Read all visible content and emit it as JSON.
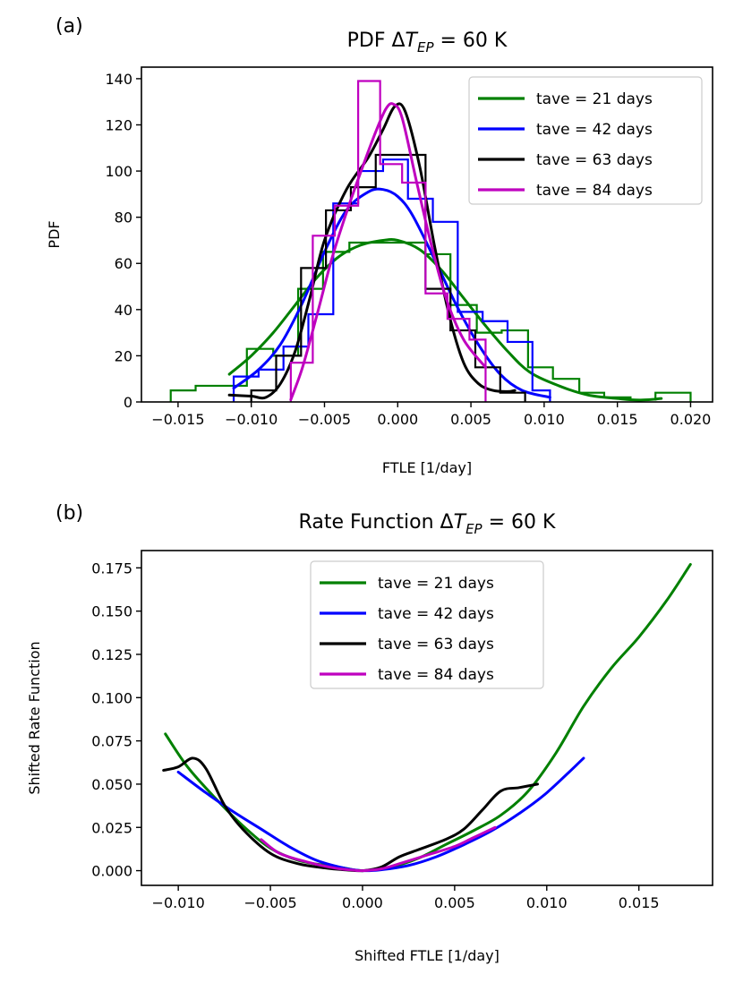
{
  "chart_data": [
    {
      "type": "line",
      "panel_label": "(a)",
      "title": "PDF ΔT_EP = 60 K",
      "title_parts": {
        "prefix": "PDF Δ",
        "var": "T",
        "sub": "EP",
        "suffix": " = 60 K"
      },
      "xlabel": "FTLE [1/day]",
      "ylabel": "PDF",
      "xlim": [
        -0.0175,
        0.0215
      ],
      "ylim": [
        0,
        145
      ],
      "xticks": [
        -0.015,
        -0.01,
        -0.005,
        0.0,
        0.005,
        0.01,
        0.015,
        0.02
      ],
      "xtick_labels": [
        "−0.015",
        "−0.010",
        "−0.005",
        "0.000",
        "0.005",
        "0.010",
        "0.015",
        "0.020"
      ],
      "yticks": [
        0,
        20,
        40,
        60,
        80,
        100,
        120,
        140
      ],
      "ytick_labels": [
        "0",
        "20",
        "40",
        "60",
        "80",
        "100",
        "120",
        "140"
      ],
      "legend_position": "top-right",
      "series": [
        {
          "name": "tave = 21 days",
          "color": "#008000",
          "histogram": {
            "edges": [
              -0.0155,
              -0.0138,
              -0.012,
              -0.0103,
              -0.0085,
              -0.0068,
              -0.0051,
              -0.0033,
              -0.0016,
              0.0002,
              0.0019,
              0.0036,
              0.0054,
              0.0071,
              0.0089,
              0.0106,
              0.0124,
              0.0141,
              0.0159,
              0.0176,
              0.02
            ],
            "counts": [
              5,
              7,
              7,
              23,
              20,
              49,
              65,
              69,
              69,
              69,
              64,
              42,
              30,
              31,
              15,
              10,
              4,
              2,
              1,
              4
            ]
          },
          "curve": {
            "x": [
              -0.0115,
              -0.01,
              -0.0085,
              -0.007,
              -0.0055,
              -0.004,
              -0.0025,
              -0.001,
              0.0,
              0.0015,
              0.003,
              0.0045,
              0.006,
              0.0075,
              0.009,
              0.011,
              0.013,
              0.015,
              0.0165,
              0.018
            ],
            "y": [
              12,
              20,
              30,
              42,
              54,
              63,
              68,
              70,
              70,
              66,
              57,
              45,
              33,
              22,
              13,
              7,
              3,
              1.5,
              0.8,
              1.5
            ]
          }
        },
        {
          "name": "tave = 42 days",
          "color": "#0000ff",
          "histogram": {
            "edges": [
              -0.0112,
              -0.0095,
              -0.0078,
              -0.0061,
              -0.0044,
              -0.0027,
              -0.001,
              0.0007,
              0.0024,
              0.0041,
              0.0058,
              0.0075,
              0.0092,
              0.0104
            ],
            "counts": [
              11,
              14,
              24,
              38,
              86,
              100,
              105,
              88,
              78,
              39,
              35,
              26,
              5
            ]
          },
          "curve": {
            "x": [
              -0.0112,
              -0.0095,
              -0.008,
              -0.0065,
              -0.005,
              -0.0035,
              -0.002,
              -0.001,
              0.0,
              0.001,
              0.0025,
              0.004,
              0.0055,
              0.007,
              0.0085,
              0.0104
            ],
            "y": [
              6,
              14,
              25,
              43,
              65,
              83,
              91,
              92,
              89,
              81,
              62,
              42,
              25,
              12,
              5,
              2
            ]
          }
        },
        {
          "name": "tave = 63 days",
          "color": "#000000",
          "histogram": {
            "edges": [
              -0.01,
              -0.0083,
              -0.0066,
              -0.0049,
              -0.0032,
              -0.0015,
              0.0002,
              0.0019,
              0.0036,
              0.0053,
              0.007,
              0.0087
            ],
            "counts": [
              5,
              20,
              58,
              83,
              93,
              107,
              107,
              49,
              31,
              15,
              4
            ]
          },
          "curve": {
            "x": [
              -0.0115,
              -0.01,
              -0.009,
              -0.008,
              -0.007,
              -0.006,
              -0.005,
              -0.0035,
              -0.002,
              -0.001,
              -0.0002,
              0.0005,
              0.0015,
              0.0025,
              0.0035,
              0.0045,
              0.0055,
              0.0065,
              0.0075,
              0.008
            ],
            "y": [
              3,
              2.5,
              2,
              8,
              22,
              45,
              70,
              92,
              106,
              118,
              128,
              126,
              102,
              68,
              38,
              17,
              8,
              5,
              4.5,
              5
            ]
          }
        },
        {
          "name": "tave = 84 days",
          "color": "#bf00bf",
          "histogram": {
            "edges": [
              -0.0073,
              -0.0058,
              -0.0043,
              -0.0027,
              -0.0012,
              0.0003,
              0.0019,
              0.0034,
              0.0049,
              0.006
            ],
            "counts": [
              17,
              72,
              85,
              139,
              103,
              95,
              47,
              36,
              27
            ]
          },
          "curve": {
            "x": [
              -0.0073,
              -0.0065,
              -0.0055,
              -0.0045,
              -0.0035,
              -0.0025,
              -0.0015,
              -0.0008,
              -0.0003,
              0.0003,
              0.0013,
              0.0023,
              0.0033,
              0.0045,
              0.006
            ],
            "y": [
              1,
              15,
              38,
              62,
              82,
              100,
              117,
              127,
              129,
              123,
              95,
              68,
              45,
              27,
              15
            ]
          }
        }
      ]
    },
    {
      "type": "line",
      "panel_label": "(b)",
      "title": "Rate Function ΔT_EP = 60 K",
      "title_parts": {
        "prefix": "Rate Function Δ",
        "var": "T",
        "sub": "EP",
        "suffix": " = 60 K"
      },
      "xlabel": "Shifted FTLE [1/day]",
      "ylabel": "Shifted Rate Function",
      "xlim": [
        -0.012,
        0.019
      ],
      "ylim": [
        -0.0085,
        0.185
      ],
      "xticks": [
        -0.01,
        -0.005,
        0.0,
        0.005,
        0.01,
        0.015
      ],
      "xtick_labels": [
        "−0.010",
        "−0.005",
        "0.000",
        "0.005",
        "0.010",
        "0.015"
      ],
      "yticks": [
        0.0,
        0.025,
        0.05,
        0.075,
        0.1,
        0.125,
        0.15,
        0.175
      ],
      "ytick_labels": [
        "0.000",
        "0.025",
        "0.050",
        "0.075",
        "0.100",
        "0.125",
        "0.150",
        "0.175"
      ],
      "legend_position": "upper-center",
      "series": [
        {
          "name": "tave = 21 days",
          "color": "#008000",
          "x": [
            -0.0107,
            -0.0095,
            -0.008,
            -0.0065,
            -0.005,
            -0.0035,
            -0.002,
            -0.001,
            0.0,
            0.0015,
            0.003,
            0.0045,
            0.006,
            0.0075,
            0.009,
            0.0105,
            0.012,
            0.0135,
            0.015,
            0.0165,
            0.0178
          ],
          "y": [
            0.079,
            0.06,
            0.042,
            0.026,
            0.013,
            0.006,
            0.003,
            0.0015,
            0.0,
            0.002,
            0.007,
            0.015,
            0.023,
            0.032,
            0.046,
            0.068,
            0.095,
            0.117,
            0.135,
            0.156,
            0.177
          ]
        },
        {
          "name": "tave = 42 days",
          "color": "#0000ff",
          "x": [
            -0.01,
            -0.0085,
            -0.007,
            -0.0055,
            -0.004,
            -0.0025,
            -0.001,
            0.0,
            0.001,
            0.0025,
            0.004,
            0.0055,
            0.007,
            0.0085,
            0.01,
            0.012
          ],
          "y": [
            0.057,
            0.045,
            0.034,
            0.024,
            0.014,
            0.006,
            0.0015,
            0.0,
            0.0005,
            0.003,
            0.008,
            0.015,
            0.023,
            0.033,
            0.045,
            0.065
          ]
        },
        {
          "name": "tave = 63 days",
          "color": "#000000",
          "x": [
            -0.0108,
            -0.01,
            -0.0092,
            -0.0085,
            -0.0075,
            -0.0065,
            -0.005,
            -0.0035,
            -0.002,
            -0.001,
            0.0,
            0.001,
            0.002,
            0.003,
            0.0045,
            0.0055,
            0.0065,
            0.0075,
            0.0085,
            0.0095
          ],
          "y": [
            0.058,
            0.06,
            0.065,
            0.059,
            0.038,
            0.024,
            0.01,
            0.004,
            0.0015,
            0.0005,
            0.0,
            0.002,
            0.008,
            0.012,
            0.018,
            0.024,
            0.035,
            0.046,
            0.048,
            0.05
          ]
        },
        {
          "name": "tave = 84 days",
          "color": "#bf00bf",
          "x": [
            -0.0055,
            -0.0045,
            -0.003,
            -0.0015,
            -0.0005,
            0.0,
            0.001,
            0.002,
            0.0035,
            0.005,
            0.006,
            0.0072
          ],
          "y": [
            0.018,
            0.01,
            0.005,
            0.0015,
            0.0003,
            0.0,
            0.001,
            0.004,
            0.009,
            0.014,
            0.019,
            0.025
          ]
        }
      ]
    }
  ]
}
